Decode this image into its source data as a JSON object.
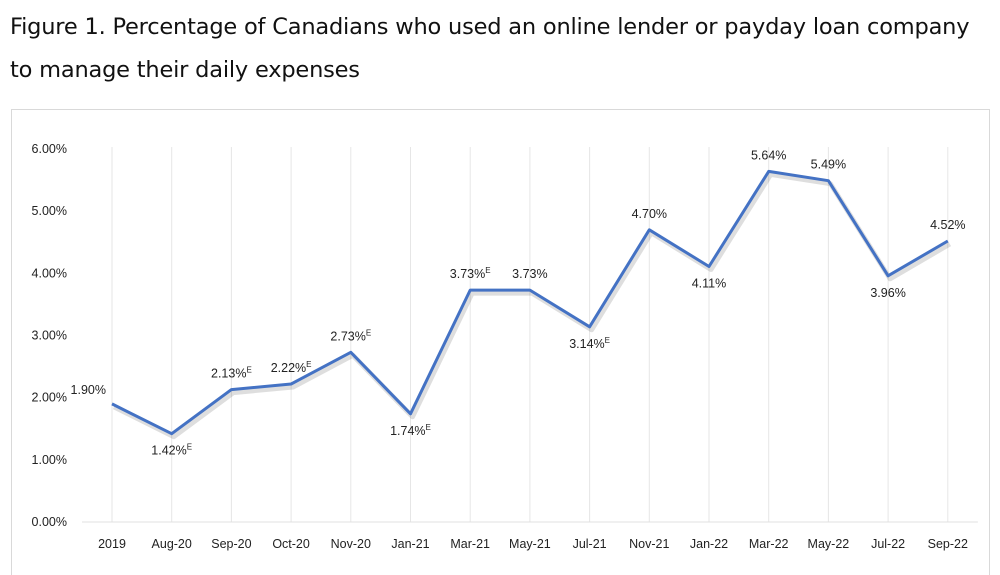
{
  "chart_data": {
    "type": "line",
    "title": "Figure 1. Percentage of Canadians who used an online lender or payday loan company to manage their daily expenses",
    "xlabel": "",
    "ylabel": "",
    "ylim": [
      0,
      6
    ],
    "y_ticks": [
      "0.00%",
      "1.00%",
      "2.00%",
      "3.00%",
      "4.00%",
      "5.00%",
      "6.00%"
    ],
    "grid": "vertical lines at each category",
    "line_color": "#4472c4",
    "categories": [
      "2019",
      "Aug-20",
      "Sep-20",
      "Oct-20",
      "Nov-20",
      "Jan-21",
      "Mar-21",
      "May-21",
      "Jul-21",
      "Nov-21",
      "Jan-22",
      "Mar-22",
      "May-22",
      "Jul-22",
      "Sep-22"
    ],
    "series": [
      {
        "values": [
          1.9,
          1.42,
          2.13,
          2.22,
          2.73,
          1.74,
          3.73,
          3.73,
          3.14,
          4.7,
          4.11,
          5.64,
          5.49,
          3.96,
          4.52
        ]
      }
    ],
    "data_labels": [
      "1.90%",
      "1.42%",
      "2.13%",
      "2.22%",
      "2.73%",
      "1.74%",
      "3.73%",
      "3.73%",
      "3.14%",
      "4.70%",
      "4.11%",
      "5.64%",
      "5.49%",
      "3.96%",
      "4.52%"
    ],
    "label_flags": [
      "",
      "E",
      "E",
      "E",
      "E",
      "E",
      "E",
      "",
      "E",
      "",
      "",
      "",
      "",
      "",
      ""
    ]
  }
}
